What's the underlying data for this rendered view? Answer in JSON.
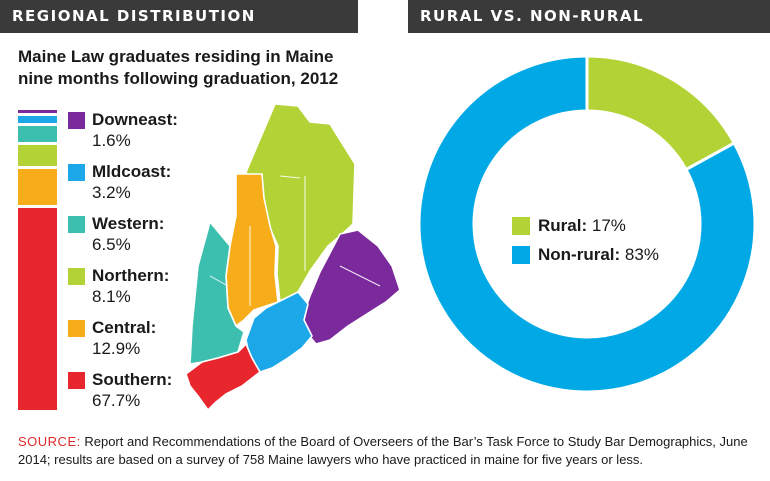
{
  "headers": {
    "left": "REGIONAL DISTRIBUTION",
    "right": "RURAL VS. NON-RURAL"
  },
  "subtitle_line1": "Maine Law graduates residing in Maine",
  "subtitle_line2": "nine months following graduation, 2012",
  "chart_data": [
    {
      "type": "bar",
      "subtype": "stacked-100",
      "title": "Maine Law graduates residing in Maine nine months following graduation, 2012",
      "categories": [
        "Downeast",
        "Midcoast",
        "Western",
        "Northern",
        "Central",
        "Southern"
      ],
      "values": [
        1.6,
        3.2,
        6.5,
        8.1,
        12.9,
        67.7
      ],
      "value_labels": [
        "1.6%",
        "3.2%",
        "6.5%",
        "8.1%",
        "12.9%",
        "67.7%"
      ],
      "display_labels": [
        "Downeast:",
        "Mldcoast:",
        "Western:",
        "Northern:",
        "Central:",
        "Southern:"
      ],
      "colors": [
        "#7b2a9b",
        "#1ca7e8",
        "#3dbfb0",
        "#b2d235",
        "#f7ad1a",
        "#e8262e"
      ],
      "unit": "%",
      "legend": "right"
    },
    {
      "type": "pie",
      "subtype": "donut",
      "categories": [
        "Rural",
        "Non-rural"
      ],
      "values": [
        17,
        83
      ],
      "value_labels": [
        "17%",
        "83%"
      ],
      "display_labels": [
        "Rural:",
        "Non-rural:"
      ],
      "colors": [
        "#b2d235",
        "#00a9e6"
      ],
      "unit": "%",
      "legend": "center"
    }
  ],
  "map": {
    "regions": [
      "Northern",
      "Central",
      "Western",
      "Downeast",
      "Midcoast",
      "Southern"
    ],
    "colors": {
      "Northern": "#b2d235",
      "Central": "#f7ad1a",
      "Western": "#3dbfb0",
      "Downeast": "#7b2a9b",
      "Midcoast": "#1ca7e8",
      "Southern": "#e8262e"
    }
  },
  "source": {
    "label": "SOURCE:",
    "text": " Report and Recommendations of the Board of Overseers of the Bar’s Task Force to Study Bar Demographics, June 2014; results are based on a survey of 758 Maine lawyers who have practiced in maine for five years or less."
  }
}
